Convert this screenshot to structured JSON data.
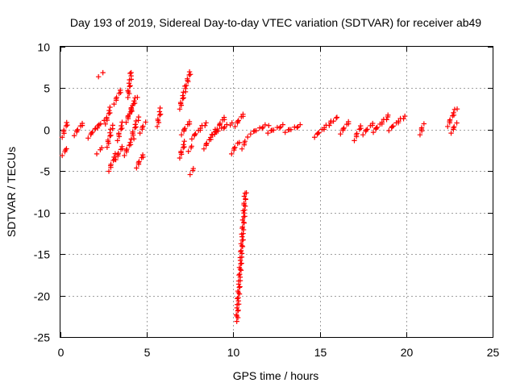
{
  "chart_data": {
    "type": "scatter",
    "title": "Day 193 of 2019, Sidereal Day-to-day VTEC variation (SDTVAR) for receiver ab49",
    "xlabel": "GPS time / hours",
    "ylabel": "SDTVAR / TECUs",
    "xlim": [
      0,
      25
    ],
    "ylim": [
      -25,
      10
    ],
    "xticks": [
      0,
      5,
      10,
      15,
      20,
      25
    ],
    "yticks": [
      10,
      5,
      0,
      -5,
      -10,
      -15,
      -20,
      -25
    ],
    "xtick_labels": [
      "0",
      "5",
      "10",
      "15",
      "20",
      "25"
    ],
    "ytick_labels": [
      "10",
      "5",
      "0",
      "-5",
      "-10",
      "-15",
      "-20",
      "-25"
    ],
    "grid": true,
    "marker": "+",
    "series": [
      {
        "name": "SDTVAR",
        "color": "#ff0000",
        "segments": [
          {
            "x": [
              0.1,
              0.4
            ],
            "y": [
              -3.0,
              -2.2
            ]
          },
          {
            "x": [
              0.1,
              0.4
            ],
            "y": [
              -0.8,
              0.9
            ]
          },
          {
            "x": [
              0.8,
              1.3
            ],
            "y": [
              -0.6,
              0.8
            ]
          },
          {
            "x": [
              1.6,
              2.2
            ],
            "y": [
              -0.9,
              0.5
            ]
          },
          {
            "x": [
              2.0,
              2.5
            ],
            "y": [
              0.2,
              1.0
            ]
          },
          {
            "x": [
              2.2,
              2.4
            ],
            "y": [
              6.5,
              6.8
            ]
          },
          {
            "x": [
              2.1,
              2.4
            ],
            "y": [
              -2.8,
              -2.2
            ]
          },
          {
            "x": [
              2.6,
              2.9
            ],
            "y": [
              0.8,
              2.6
            ]
          },
          {
            "x": [
              2.7,
              3.0
            ],
            "y": [
              -2.0,
              0.5
            ]
          },
          {
            "x": [
              2.8,
              3.2
            ],
            "y": [
              -4.9,
              -3.0
            ]
          },
          {
            "x": [
              3.1,
              3.5
            ],
            "y": [
              3.2,
              4.8
            ]
          },
          {
            "x": [
              3.2,
              3.6
            ],
            "y": [
              -3.5,
              -2.0
            ]
          },
          {
            "x": [
              3.3,
              3.6
            ],
            "y": [
              -1.2,
              0.8
            ]
          },
          {
            "x": [
              3.7,
              4.2
            ],
            "y": [
              -3.0,
              -1.0
            ]
          },
          {
            "x": [
              3.8,
              4.2
            ],
            "y": [
              1.0,
              2.8
            ]
          },
          {
            "x": [
              3.9,
              4.1
            ],
            "y": [
              4.0,
              7.0
            ]
          },
          {
            "x": [
              4.0,
              4.4
            ],
            "y": [
              2.0,
              4.0
            ]
          },
          {
            "x": [
              4.1,
              4.5
            ],
            "y": [
              -1.0,
              1.5
            ]
          },
          {
            "x": [
              4.4,
              4.8
            ],
            "y": [
              -4.5,
              -3.0
            ]
          },
          {
            "x": [
              4.6,
              4.9
            ],
            "y": [
              -0.3,
              0.8
            ]
          },
          {
            "x": [
              5.6,
              5.8
            ],
            "y": [
              0.5,
              2.5
            ]
          },
          {
            "x": [
              6.9,
              7.5
            ],
            "y": [
              2.6,
              7.0
            ]
          },
          {
            "x": [
              6.9,
              7.2
            ],
            "y": [
              -3.3,
              -1.5
            ]
          },
          {
            "x": [
              7.0,
              7.5
            ],
            "y": [
              -0.5,
              1.0
            ]
          },
          {
            "x": [
              7.5,
              7.7
            ],
            "y": [
              -5.3,
              -4.7
            ]
          },
          {
            "x": [
              7.4,
              7.6
            ],
            "y": [
              -2.5,
              -2.0
            ]
          },
          {
            "x": [
              7.6,
              8.4
            ],
            "y": [
              -1.0,
              0.8
            ]
          },
          {
            "x": [
              8.3,
              9.5
            ],
            "y": [
              -2.2,
              1.5
            ]
          },
          {
            "x": [
              8.8,
              9.9
            ],
            "y": [
              -0.5,
              0.8
            ]
          },
          {
            "x": [
              9.9,
              10.3
            ],
            "y": [
              -2.8,
              -1.5
            ]
          },
          {
            "x": [
              10.1,
              10.6
            ],
            "y": [
              0.5,
              1.9
            ]
          },
          {
            "x": [
              10.2,
              10.7
            ],
            "y": [
              -23.0,
              -7.5
            ]
          },
          {
            "x": [
              10.5,
              10.8
            ],
            "y": [
              -2.2,
              -1.0
            ]
          },
          {
            "x": [
              11.0,
              12.0
            ],
            "y": [
              -0.4,
              0.6
            ]
          },
          {
            "x": [
              12.0,
              12.9
            ],
            "y": [
              -0.3,
              0.5
            ]
          },
          {
            "x": [
              13.0,
              13.9
            ],
            "y": [
              -0.2,
              0.5
            ]
          },
          {
            "x": [
              14.7,
              16.0
            ],
            "y": [
              -0.8,
              1.5
            ]
          },
          {
            "x": [
              16.2,
              16.7
            ],
            "y": [
              -0.4,
              1.0
            ]
          },
          {
            "x": [
              17.0,
              17.4
            ],
            "y": [
              -1.2,
              0.5
            ]
          },
          {
            "x": [
              17.5,
              18.1
            ],
            "y": [
              -0.5,
              0.8
            ]
          },
          {
            "x": [
              18.1,
              19.0
            ],
            "y": [
              -0.2,
              1.7
            ]
          },
          {
            "x": [
              19.0,
              19.9
            ],
            "y": [
              0.0,
              1.6
            ]
          },
          {
            "x": [
              20.8,
              21.0
            ],
            "y": [
              -0.5,
              0.6
            ]
          },
          {
            "x": [
              22.4,
              22.9
            ],
            "y": [
              0.5,
              2.6
            ]
          },
          {
            "x": [
              22.6,
              22.9
            ],
            "y": [
              -0.3,
              0.7
            ]
          }
        ]
      }
    ]
  }
}
